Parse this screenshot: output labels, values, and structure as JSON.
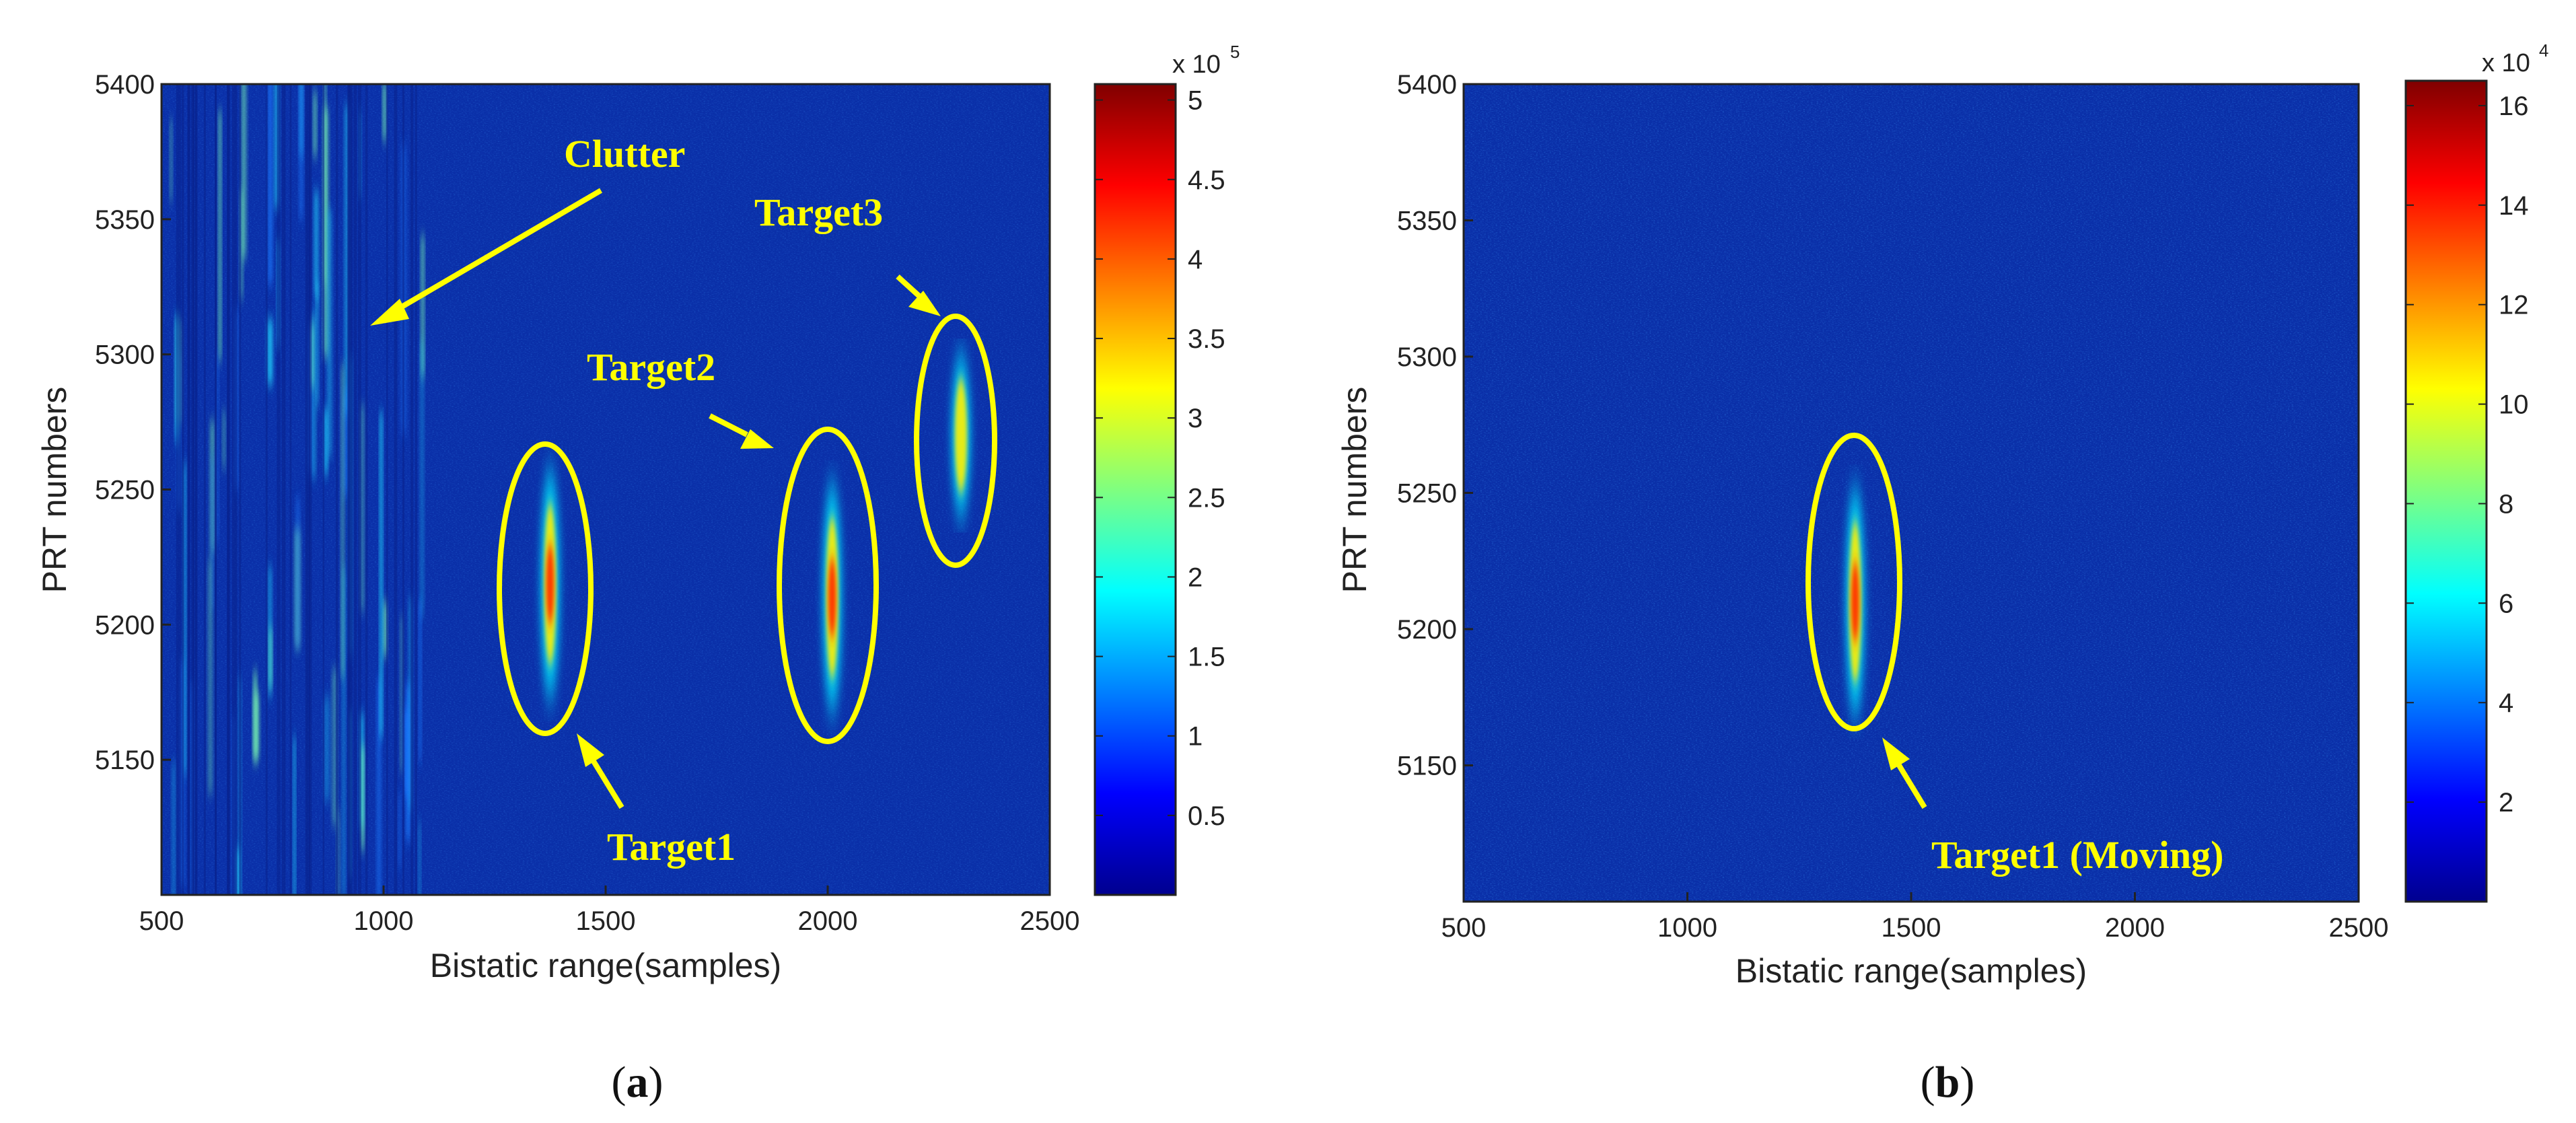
{
  "figure": {
    "caption_a": "a",
    "caption_b": "b"
  },
  "chart_data": [
    {
      "type": "heatmap",
      "panel": "a",
      "xlabel": "Bistatic range(samples)",
      "ylabel": "PRT numbers",
      "xlim": [
        500,
        2500
      ],
      "ylim": [
        5100,
        5400
      ],
      "xticks": [
        500,
        1000,
        1500,
        2000,
        2500
      ],
      "yticks": [
        5150,
        5200,
        5250,
        5300,
        5350,
        5400
      ],
      "colorbar": {
        "multiplier": "x 10",
        "exponent": "5",
        "min": 0,
        "max": 5.1,
        "ticks": [
          0.5,
          1,
          1.5,
          2,
          2.5,
          3,
          3.5,
          4,
          4.5,
          5
        ]
      },
      "features": [
        {
          "label": "Clutter",
          "range": [
            500,
            1100
          ],
          "prt": [
            5100,
            5400
          ]
        },
        {
          "label": "Target1",
          "range": 1375,
          "prt": 5215
        },
        {
          "label": "Target2",
          "range": 2010,
          "prt": 5210
        },
        {
          "label": "Target3",
          "range": 2300,
          "prt": 5270
        }
      ],
      "annotations": [
        "Clutter",
        "Target1",
        "Target2",
        "Target3"
      ]
    },
    {
      "type": "heatmap",
      "panel": "b",
      "xlabel": "Bistatic range(samples)",
      "ylabel": "PRT numbers",
      "xlim": [
        500,
        2500
      ],
      "ylim": [
        5100,
        5400
      ],
      "xticks": [
        500,
        1000,
        1500,
        2000,
        2500
      ],
      "yticks": [
        5150,
        5200,
        5250,
        5300,
        5350,
        5400
      ],
      "colorbar": {
        "multiplier": "x 10",
        "exponent": "4",
        "min": 0,
        "max": 16.5,
        "ticks": [
          2,
          4,
          6,
          8,
          10,
          12,
          14,
          16
        ]
      },
      "features": [
        {
          "label": "Target1 (Moving)",
          "range": 1375,
          "prt": 5210
        }
      ],
      "annotations": [
        "Target1 (Moving)"
      ]
    }
  ],
  "colors": {
    "annotation": "#ffff00",
    "background_field": "#0a2fa8"
  }
}
